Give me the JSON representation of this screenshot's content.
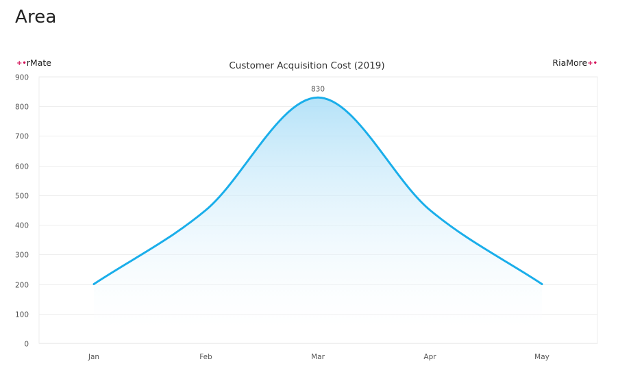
{
  "page": {
    "title": "Area"
  },
  "brand": {
    "left_label": "rMate",
    "right_label": "RiaMore",
    "mark": "+•"
  },
  "colors": {
    "line": "#1aaeea",
    "fill_top": "#a8ddf7",
    "fill_bottom": "#ffffff",
    "grid": "#eeeeee",
    "brand_mark": "#d4145a"
  },
  "chart_data": {
    "type": "area",
    "title": "Customer Acquisition Cost (2019)",
    "categories": [
      "Jan",
      "Feb",
      "Mar",
      "Apr",
      "May"
    ],
    "values": [
      200,
      450,
      830,
      450,
      200
    ],
    "ylim": [
      0,
      900
    ],
    "yticks": [
      0,
      100,
      200,
      300,
      400,
      500,
      600,
      700,
      800,
      900
    ],
    "smooth": true,
    "grid": true,
    "data_labels": [
      {
        "category": "Mar",
        "value": 830,
        "text": "830"
      }
    ],
    "xlabel": "",
    "ylabel": ""
  }
}
